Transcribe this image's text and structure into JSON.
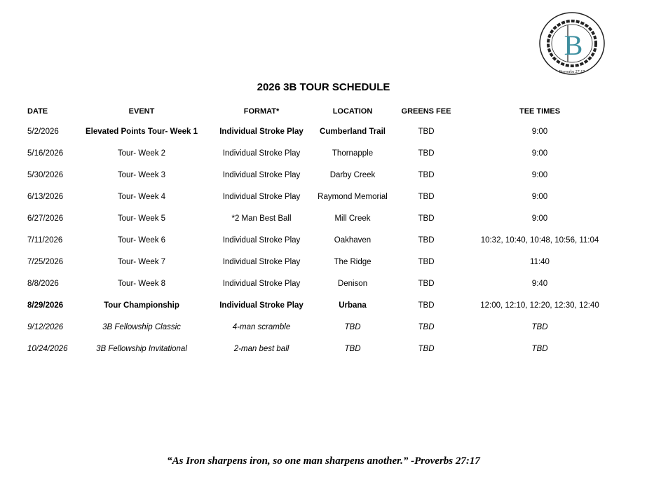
{
  "logo": {
    "ring_text": "As Iron sharpens iron, so one man sharpens another",
    "bottom_text": "Proverbs 27:17",
    "letter": "B",
    "color": "#3c8fa0"
  },
  "title": "2026 3B TOUR SCHEDULE",
  "columns": [
    "DATE",
    "EVENT",
    "FORMAT*",
    "LOCATION",
    "GREENS FEE",
    "TEE TIMES"
  ],
  "rows": [
    {
      "date": "5/2/2026",
      "event": "Elevated Points Tour- Week 1",
      "format": "Individual Stroke Play",
      "location": "Cumberland Trail",
      "fee": "TBD",
      "tee": "9:00"
    },
    {
      "date": "5/16/2026",
      "event": "Tour- Week 2",
      "format": "Individual Stroke Play",
      "location": "Thornapple",
      "fee": "TBD",
      "tee": "9:00"
    },
    {
      "date": "5/30/2026",
      "event": "Tour- Week 3",
      "format": "Individual Stroke Play",
      "location": "Darby Creek",
      "fee": "TBD",
      "tee": "9:00"
    },
    {
      "date": "6/13/2026",
      "event": "Tour- Week 4",
      "format": "Individual Stroke Play",
      "location": "Raymond Memorial",
      "fee": "TBD",
      "tee": "9:00"
    },
    {
      "date": "6/27/2026",
      "event": "Tour- Week 5",
      "format": "*2 Man Best Ball",
      "location": "Mill Creek",
      "fee": "TBD",
      "tee": "9:00"
    },
    {
      "date": "7/11/2026",
      "event": "Tour- Week 6",
      "format": "Individual Stroke Play",
      "location": "Oakhaven",
      "fee": "TBD",
      "tee": "10:32, 10:40, 10:48, 10:56, 11:04"
    },
    {
      "date": "7/25/2026",
      "event": "Tour- Week 7",
      "format": "Individual Stroke Play",
      "location": "The Ridge",
      "fee": "TBD",
      "tee": "11:40"
    },
    {
      "date": "8/8/2026",
      "event": "Tour- Week 8",
      "format": "Individual Stroke Play",
      "location": "Denison",
      "fee": "TBD",
      "tee": "9:40"
    },
    {
      "date": "8/29/2026",
      "event": "Tour Championship",
      "format": "Individual Stroke Play",
      "location": "Urbana",
      "fee": "TBD",
      "tee": "12:00, 12:10, 12:20, 12:30, 12:40"
    },
    {
      "date": "9/12/2026",
      "event": "3B Fellowship Classic",
      "format": "4-man scramble",
      "location": "TBD",
      "fee": "TBD",
      "tee": "TBD"
    },
    {
      "date": "10/24/2026",
      "event": "3B Fellowship Invitational",
      "format": "2-man best ball",
      "location": "TBD",
      "fee": "TBD",
      "tee": "TBD"
    }
  ],
  "quote": "“As Iron sharpens iron, so one man sharpens another.” -Proverbs 27:17"
}
